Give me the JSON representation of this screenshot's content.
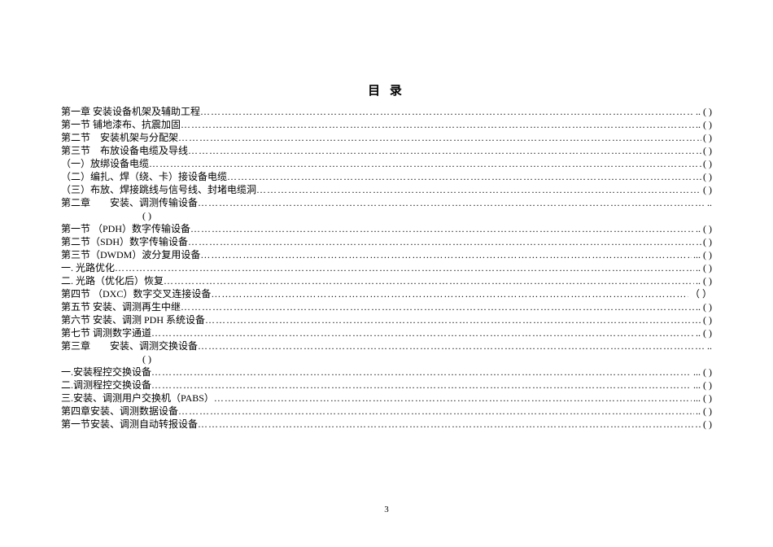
{
  "title": "目 录",
  "entries": [
    {
      "label": "第一章 安装设备机架及辅助工程",
      "pageSuffix": ".. ( )"
    },
    {
      "label": "第一节 铺地漆布、抗震加固",
      "pageSuffix": ".. ( )"
    },
    {
      "label": "第二节　安装机架与分配架",
      "pageSuffix": " ( )"
    },
    {
      "label": "第三节　布放设备电缆及导线",
      "pageSuffix": " ( )"
    },
    {
      "label": "（一）放绑设备电缆",
      "pageSuffix": " ( )"
    },
    {
      "label": "（二）编扎、焊（绕、卡）接设备电缆",
      "pageSuffix": " ( )"
    },
    {
      "label": "（三）布放、焊接跳线与信号线、封堵电缆洞",
      "pageSuffix": " ( )"
    },
    {
      "label": "第二章　　安装、调测传输设备",
      "pageSuffix": "..",
      "hasContinuation": true,
      "continuation": "( )"
    },
    {
      "label": "第一节 （PDH）数字传输设备",
      "pageSuffix": ".. ( )"
    },
    {
      "label": "第二节（SDH）数字传输设备",
      "pageSuffix": " ( )"
    },
    {
      "label": "第三节（DWDM）波分复用设备",
      "pageSuffix": "... ( )"
    },
    {
      "label": "一. 光路优化",
      "pageSuffix": ".. ( )"
    },
    {
      "label": "二. 光路（优化后）恢复",
      "pageSuffix": ".. ( )"
    },
    {
      "label": "第四节 （DXC）数字交叉连接设备",
      "pageSuffix": "（ ）"
    },
    {
      "label": "第五节 安装、调测再生中继",
      "pageSuffix": ".. ( )"
    },
    {
      "label": "第六节 安装、调测 PDH 系统设备",
      "pageSuffix": " ( )"
    },
    {
      "label": "第七节 调测数字通道",
      "pageSuffix": ".. ( )"
    },
    {
      "label": "第三章　　安装、调测交换设备",
      "pageSuffix": "..",
      "hasContinuation": true,
      "continuation": "( )"
    },
    {
      "label": "一.安装程控交换设备",
      "pageSuffix": "... ( )"
    },
    {
      "label": "二.调测程控交换设备",
      "pageSuffix": "... ( )"
    },
    {
      "label": "三.安装、调测用户交换机（PABS）",
      "pageSuffix": "... ( )"
    },
    {
      "label": "第四章安装、调测数据设备",
      "pageSuffix": ".. ( )"
    },
    {
      "label": "第一节安装、调测自动转报设备",
      "pageSuffix": " ( )"
    }
  ],
  "pageNumber": "3",
  "colors": {
    "background": "#ffffff",
    "text": "#000000"
  },
  "typography": {
    "titleFontSize": 15,
    "bodyFontSize": 12,
    "fontFamily": "SimSun"
  }
}
